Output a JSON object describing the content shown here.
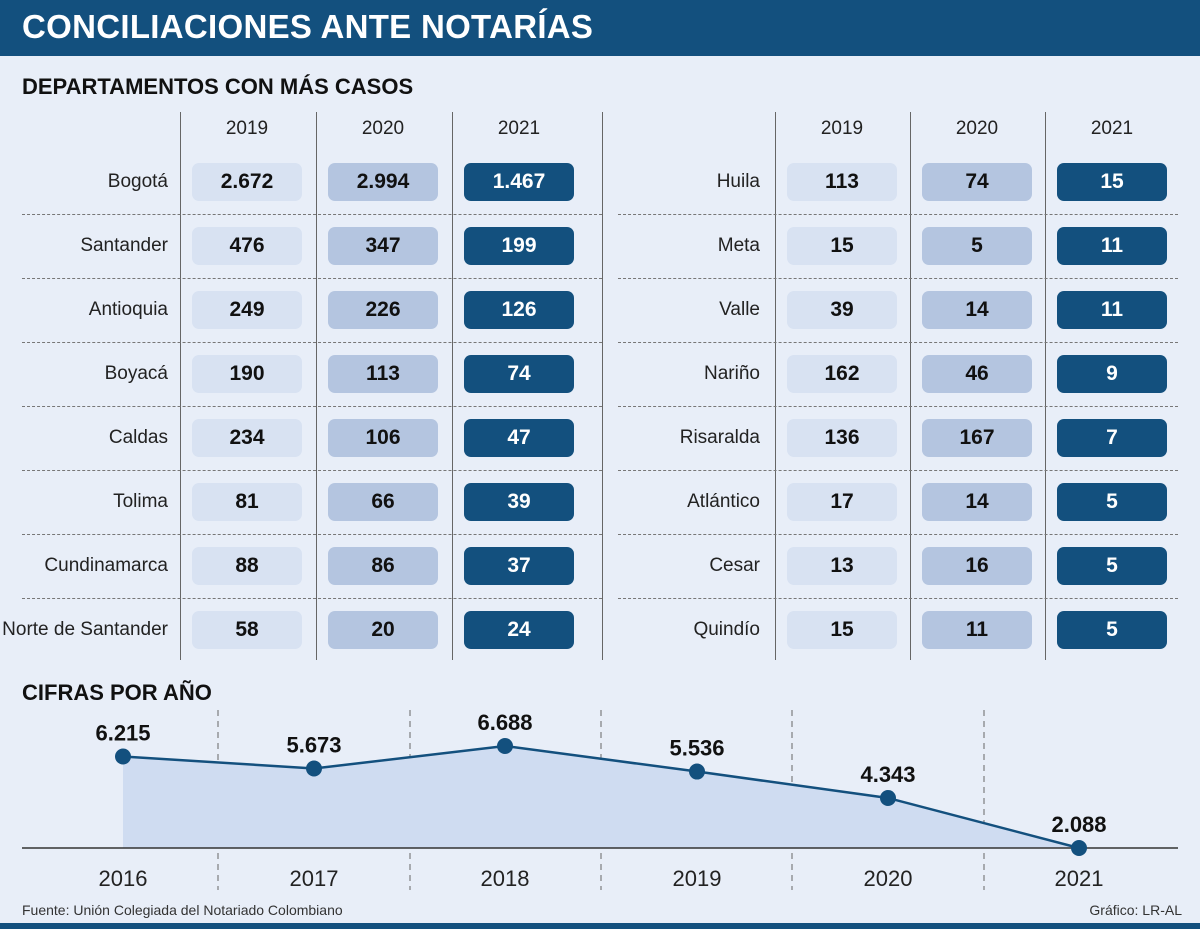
{
  "header": {
    "title": "CONCILIACIONES ANTE NOTARÍAS"
  },
  "colors": {
    "dark_blue": "#13507e",
    "mid_blue": "#b4c5e0",
    "light_blue": "#d8e2f2",
    "background": "#e8eef8"
  },
  "chart_data": [
    {
      "type": "table",
      "title": "DEPARTAMENTOS CON MÁS CASOS",
      "columns": [
        "2019",
        "2020",
        "2021"
      ],
      "rows": [
        {
          "name": "Bogotá",
          "values": [
            "2.672",
            "2.994",
            "1.467"
          ]
        },
        {
          "name": "Santander",
          "values": [
            "476",
            "347",
            "199"
          ]
        },
        {
          "name": "Antioquia",
          "values": [
            "249",
            "226",
            "126"
          ]
        },
        {
          "name": "Boyacá",
          "values": [
            "190",
            "113",
            "74"
          ]
        },
        {
          "name": "Caldas",
          "values": [
            "234",
            "106",
            "47"
          ]
        },
        {
          "name": "Tolima",
          "values": [
            "81",
            "66",
            "39"
          ]
        },
        {
          "name": "Cundinamarca",
          "values": [
            "88",
            "86",
            "37"
          ]
        },
        {
          "name": "Norte de Santander",
          "values": [
            "58",
            "20",
            "24"
          ]
        },
        {
          "name": "Huila",
          "values": [
            "113",
            "74",
            "15"
          ]
        },
        {
          "name": "Meta",
          "values": [
            "15",
            "5",
            "11"
          ]
        },
        {
          "name": "Valle",
          "values": [
            "39",
            "14",
            "11"
          ]
        },
        {
          "name": "Nariño",
          "values": [
            "162",
            "46",
            "9"
          ]
        },
        {
          "name": "Risaralda",
          "values": [
            "136",
            "167",
            "7"
          ]
        },
        {
          "name": "Atlántico",
          "values": [
            "17",
            "14",
            "5"
          ]
        },
        {
          "name": "Cesar",
          "values": [
            "13",
            "16",
            "5"
          ]
        },
        {
          "name": "Quindío",
          "values": [
            "15",
            "11",
            "5"
          ]
        }
      ]
    },
    {
      "type": "area",
      "title": "CIFRAS POR AÑO",
      "x": [
        "2016",
        "2017",
        "2018",
        "2019",
        "2020",
        "2021"
      ],
      "values": [
        6215,
        5673,
        6688,
        5536,
        4343,
        2088
      ],
      "value_labels": [
        "6.215",
        "5.673",
        "6.688",
        "5.536",
        "4.343",
        "2.088"
      ],
      "ylim": [
        2088,
        6688
      ],
      "grid": "vertical dashed"
    }
  ],
  "footer": {
    "source": "Fuente: Unión Colegiada del Notariado Colombiano",
    "credit": "Gráfico: LR-AL"
  }
}
